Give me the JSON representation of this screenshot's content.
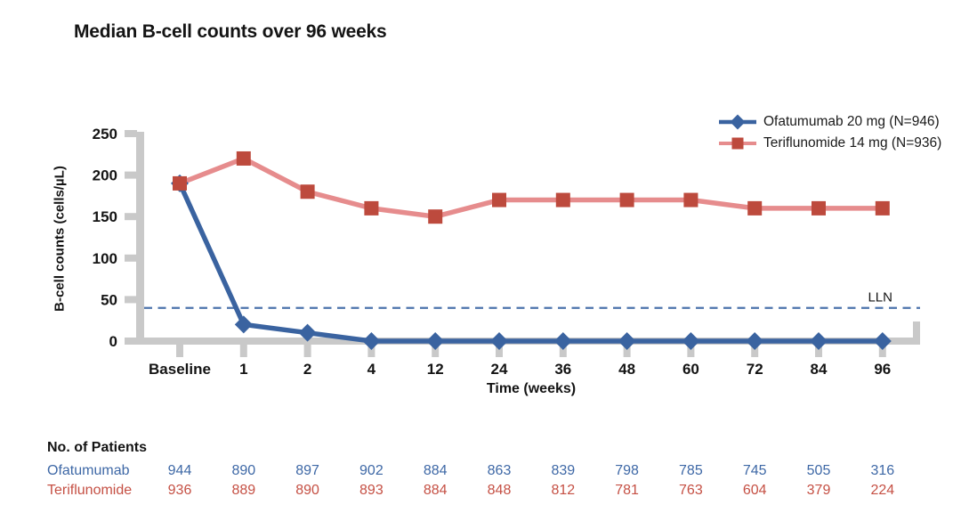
{
  "title": "Median B-cell counts over 96 weeks",
  "colors": {
    "ofatumumab_blue": "#3A63A0",
    "teriflunomide_marker_red": "#BD4A3D",
    "teriflunomide_line_pink": "#E68C8D",
    "axis_gray": "#C9C9C9",
    "lln_dash_blue": "#4C74AC",
    "text_black": "#141414",
    "table_blue": "#3E68A6",
    "table_red": "#C55044"
  },
  "chart_data": {
    "type": "line",
    "title": "Median B-cell counts over 96 weeks",
    "xlabel": "Time (weeks)",
    "ylabel": "B-cell counts (cells/µL)",
    "categories": [
      "Baseline",
      "1",
      "2",
      "4",
      "12",
      "24",
      "36",
      "48",
      "60",
      "72",
      "84",
      "96"
    ],
    "yticks": [
      0,
      50,
      100,
      150,
      200,
      250
    ],
    "ylim": [
      0,
      250
    ],
    "grid": false,
    "legend_position": "top-right",
    "series": [
      {
        "name": "Ofatumumab 20 mg (N=946)",
        "marker": "diamond",
        "marker_color": "#3A63A0",
        "line_color": "#3A63A0",
        "values": [
          190,
          20,
          10,
          0,
          0,
          0,
          0,
          0,
          0,
          0,
          0,
          0
        ]
      },
      {
        "name": "Teriflunomide 14 mg (N=936)",
        "marker": "square",
        "marker_color": "#BD4A3D",
        "line_color": "#E68C8D",
        "values": [
          190,
          220,
          180,
          160,
          150,
          170,
          170,
          170,
          170,
          160,
          160,
          160
        ]
      }
    ],
    "reference_line": {
      "label": "LLN",
      "value": 40,
      "style": "dashed",
      "color": "#4C74AC"
    }
  },
  "patients_table": {
    "header": "No. of Patients",
    "rows": [
      {
        "label": "Ofatumumab",
        "color": "#3E68A6",
        "values": [
          944,
          890,
          897,
          902,
          884,
          863,
          839,
          798,
          785,
          745,
          505,
          316
        ]
      },
      {
        "label": "Teriflunomide",
        "color": "#C55044",
        "values": [
          936,
          889,
          890,
          893,
          884,
          848,
          812,
          781,
          763,
          604,
          379,
          224
        ]
      }
    ]
  }
}
